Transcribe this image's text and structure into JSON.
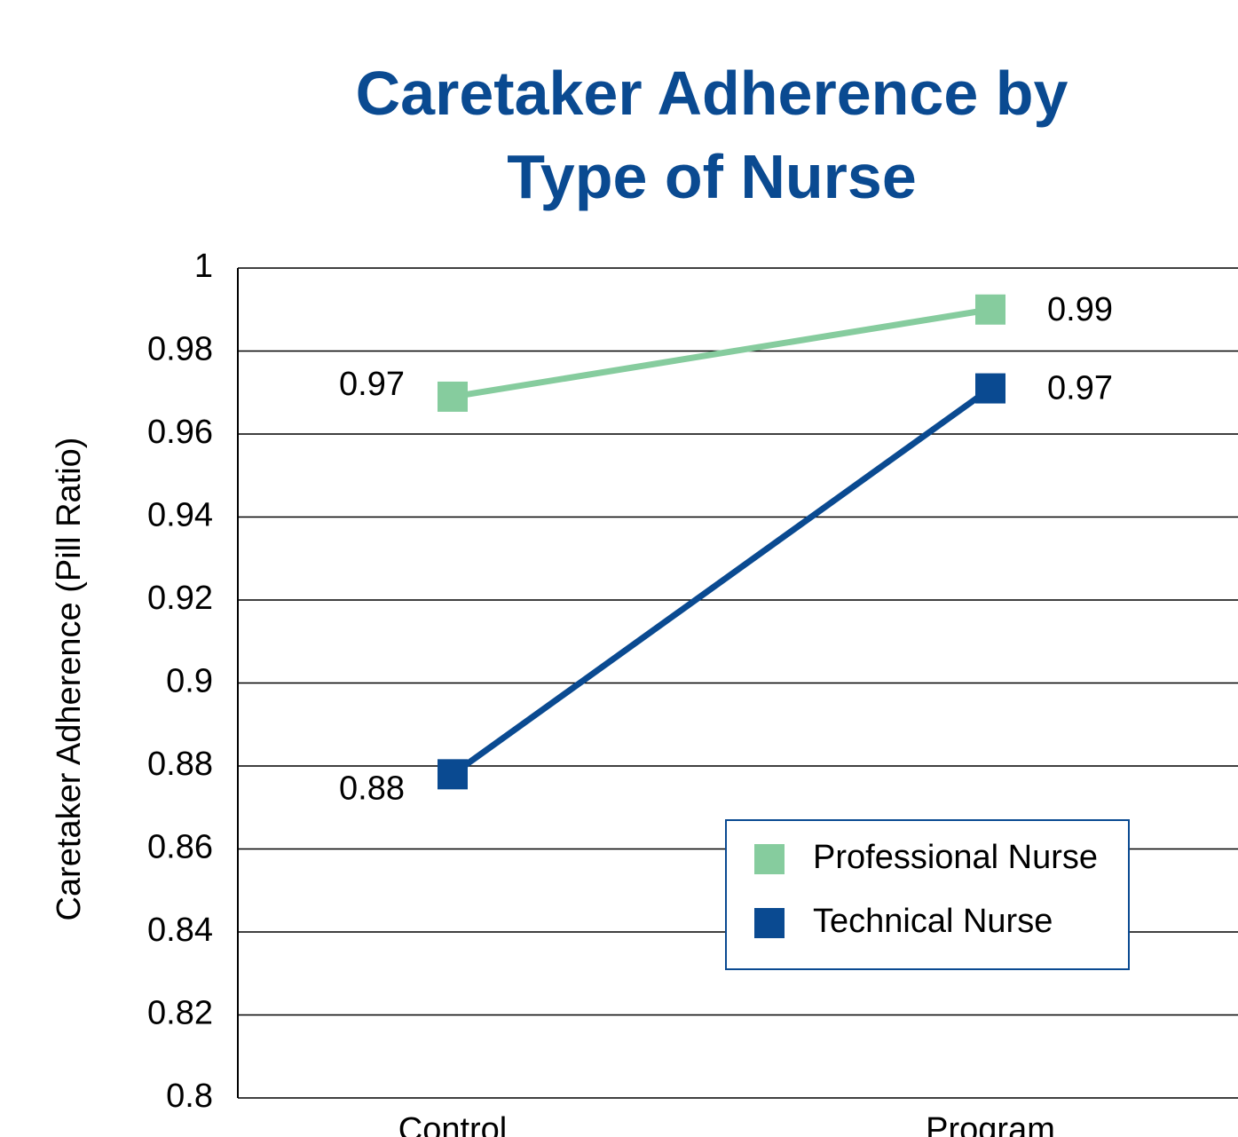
{
  "chart_data": {
    "type": "line",
    "title": "Caretaker Adherence by Type of Nurse",
    "y_label": "Caretaker Adherence (Pill Ratio)",
    "categories": [
      "Control",
      "Program"
    ],
    "series": [
      {
        "name": "Professional Nurse",
        "color": "#86cc9e",
        "values": [
          0.969,
          0.99
        ],
        "value_labels": [
          "0.97",
          "0.99"
        ]
      },
      {
        "name": "Technical Nurse",
        "color": "#0a4a91",
        "values": [
          0.878,
          0.971
        ],
        "value_labels": [
          "0.88",
          "0.97"
        ]
      }
    ],
    "ylim": [
      0.8,
      1
    ],
    "yticks": [
      0.8,
      0.82,
      0.84,
      0.86,
      0.88,
      0.9,
      0.92,
      0.94,
      0.96,
      0.98,
      1
    ],
    "grid": true,
    "legend": "lower right"
  }
}
